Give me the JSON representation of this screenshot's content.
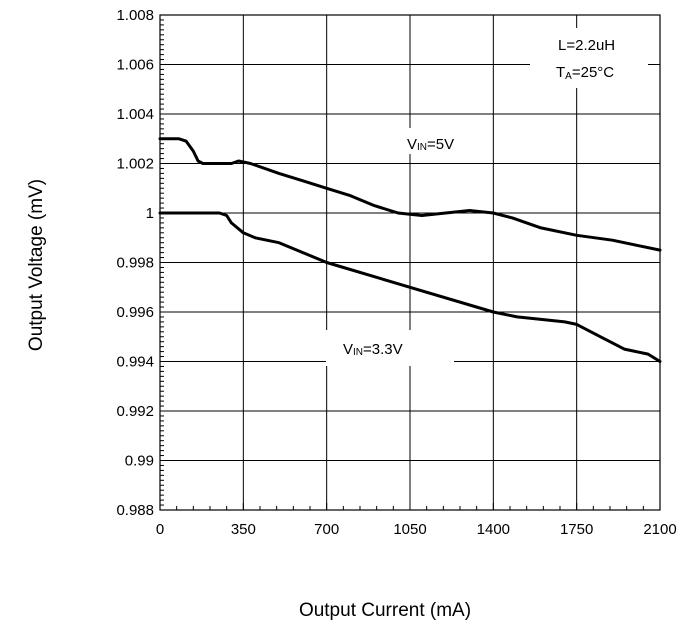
{
  "chart_data": {
    "type": "line",
    "title": "",
    "xlabel": "Output Current (mA)",
    "ylabel": "Output Voltage (mV)",
    "xlim": [
      0,
      2100
    ],
    "ylim": [
      0.988,
      1.008
    ],
    "xticks": [
      "0",
      "350",
      "700",
      "1050",
      "1400",
      "1750",
      "2100"
    ],
    "yticks": [
      "1.008",
      "1.006",
      "1.004",
      "1.002",
      "1",
      "0.998",
      "0.996",
      "0.994",
      "0.992",
      "0.99",
      "0.988"
    ],
    "grid": true,
    "conditions": {
      "inductance": "L=2.2uH",
      "temp_prefix": "T",
      "temp_sub": "A",
      "temp_value": "=25°C"
    },
    "series": [
      {
        "label_main": "V",
        "label_sub": "IN",
        "label_value": "=5V",
        "x": [
          0,
          50,
          80,
          110,
          140,
          160,
          180,
          200,
          230,
          300,
          330,
          380,
          500,
          600,
          700,
          800,
          900,
          1000,
          1100,
          1200,
          1300,
          1400,
          1480,
          1600,
          1750,
          1900,
          2000,
          2100
        ],
        "y": [
          1.003,
          1.003,
          1.003,
          1.0029,
          1.0025,
          1.0021,
          1.002,
          1.002,
          1.002,
          1.002,
          1.0021,
          1.002,
          1.0016,
          1.0013,
          1.001,
          1.0007,
          1.0003,
          1.0,
          0.9999,
          1.0,
          1.0001,
          1.0,
          0.9998,
          0.9994,
          0.9991,
          0.9989,
          0.9987,
          0.9985
        ]
      },
      {
        "label_main": "V",
        "label_sub": "IN",
        "label_value": "=3.3V",
        "x": [
          0,
          100,
          200,
          250,
          280,
          300,
          350,
          400,
          500,
          700,
          1050,
          1400,
          1500,
          1600,
          1700,
          1750,
          1850,
          1950,
          2050,
          2100
        ],
        "y": [
          1.0,
          1.0,
          1.0,
          1.0,
          0.9999,
          0.9996,
          0.9992,
          0.999,
          0.9988,
          0.998,
          0.997,
          0.996,
          0.9958,
          0.9957,
          0.9956,
          0.9955,
          0.995,
          0.9945,
          0.9943,
          0.994
        ]
      }
    ]
  }
}
